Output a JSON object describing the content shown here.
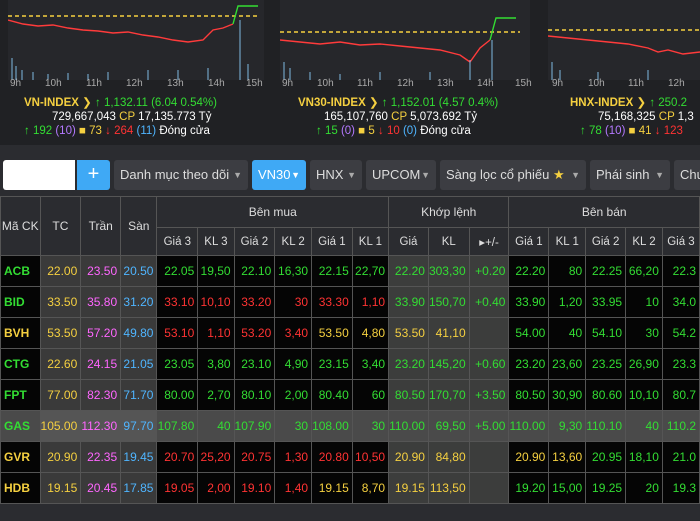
{
  "time_labels": [
    "9h",
    "10h",
    "11h",
    "12h",
    "13h",
    "14h",
    "15h"
  ],
  "indices": [
    {
      "name": "VN-INDEX",
      "arrow": "↑",
      "value": "1,132.11",
      "change": "(6.04 0.54%)",
      "volume": "729,667,043",
      "cp_label": "CP",
      "cp_value": "17,135.773 Tỷ",
      "adv": "192",
      "adv_ceil": "(10)",
      "unch": "73",
      "dec": "264",
      "dec_floor": "(11)",
      "status": "Đóng cửa"
    },
    {
      "name": "VN30-INDEX",
      "arrow": "↑",
      "value": "1,152.01",
      "change": "(4.57 0.4%)",
      "volume": "165,107,760",
      "cp_label": "CP",
      "cp_value": "5,073.692 Tỷ",
      "adv": "15",
      "adv_ceil": "(0)",
      "unch": "5",
      "dec": "10",
      "dec_floor": "(0)",
      "status": "Đóng cửa"
    },
    {
      "name": "HNX-INDEX",
      "arrow": "↑",
      "value": "250.2",
      "change": "",
      "volume": "75,168,325",
      "cp_label": "CP",
      "cp_value": "1,3",
      "adv": "78",
      "adv_ceil": "(10)",
      "unch": "41",
      "dec": "123",
      "dec_floor": "",
      "status": ""
    }
  ],
  "toolbar": {
    "search_placeholder": "",
    "add_label": "+",
    "watchlist_label": "Danh mục theo dõi",
    "vn30_label": "VN30",
    "hnx_label": "HNX",
    "upcom_label": "UPCOM",
    "filter_label": "Sàng lọc cổ phiếu",
    "star": "★",
    "derivatives_label": "Phái sinh",
    "last_label": "Chứ"
  },
  "table": {
    "head": {
      "symbol": "Mã CK",
      "tc": "TC",
      "ceil": "Trần",
      "floor": "Sàn",
      "buy": "Bên mua",
      "match": "Khớp lệnh",
      "sell": "Bên bán",
      "g3": "Giá 3",
      "kl3": "KL 3",
      "g2": "Giá 2",
      "kl2": "KL 2",
      "g1": "Giá 1",
      "kl1": "KL 1",
      "mg": "Giá",
      "mkl": "KL",
      "mchg": "+/-",
      "s_g1": "Giá 1",
      "s_kl1": "KL 1",
      "s_g2": "Giá 2",
      "s_kl2": "KL 2",
      "s_g3": "Giá 3"
    },
    "rows": [
      {
        "sym": "ACB",
        "c": "up",
        "tc": "22.00",
        "ceil": "23.50",
        "floor": "20.50",
        "b": [
          [
            "22.05",
            "up"
          ],
          [
            "19,50",
            "up"
          ],
          [
            "22.10",
            "up"
          ],
          [
            "16,30",
            "up"
          ],
          [
            "22.15",
            "up"
          ],
          [
            "22,70",
            "up"
          ]
        ],
        "m": [
          [
            "22.20",
            "up"
          ],
          [
            "303,30",
            "up"
          ],
          [
            "+0.20",
            "up"
          ]
        ],
        "s": [
          [
            "22.20",
            "up"
          ],
          [
            "80",
            "up"
          ],
          [
            "22.25",
            "up"
          ],
          [
            "66,20",
            "up"
          ],
          [
            "22.3",
            "up"
          ]
        ]
      },
      {
        "sym": "BID",
        "c": "up",
        "tc": "33.50",
        "ceil": "35.80",
        "floor": "31.20",
        "b": [
          [
            "33.10",
            "down"
          ],
          [
            "10,10",
            "down"
          ],
          [
            "33.20",
            "down"
          ],
          [
            "30",
            "down"
          ],
          [
            "33.30",
            "down"
          ],
          [
            "1,10",
            "down"
          ]
        ],
        "m": [
          [
            "33.90",
            "up"
          ],
          [
            "150,70",
            "up"
          ],
          [
            "+0.40",
            "up"
          ]
        ],
        "s": [
          [
            "33.90",
            "up"
          ],
          [
            "1,20",
            "up"
          ],
          [
            "33.95",
            "up"
          ],
          [
            "10",
            "up"
          ],
          [
            "34.0",
            "up"
          ]
        ]
      },
      {
        "sym": "BVH",
        "c": "ref",
        "tc": "53.50",
        "ceil": "57.20",
        "floor": "49.80",
        "b": [
          [
            "53.10",
            "down"
          ],
          [
            "1,10",
            "down"
          ],
          [
            "53.20",
            "down"
          ],
          [
            "3,40",
            "down"
          ],
          [
            "53.50",
            "ref"
          ],
          [
            "4,80",
            "ref"
          ]
        ],
        "m": [
          [
            "53.50",
            "ref"
          ],
          [
            "41,10",
            "ref"
          ],
          [
            "",
            ""
          ]
        ],
        "s": [
          [
            "54.00",
            "up"
          ],
          [
            "40",
            "up"
          ],
          [
            "54.10",
            "up"
          ],
          [
            "30",
            "up"
          ],
          [
            "54.2",
            "up"
          ]
        ]
      },
      {
        "sym": "CTG",
        "c": "up",
        "tc": "22.60",
        "ceil": "24.15",
        "floor": "21.05",
        "b": [
          [
            "23.05",
            "up"
          ],
          [
            "3,80",
            "up"
          ],
          [
            "23.10",
            "up"
          ],
          [
            "4,90",
            "up"
          ],
          [
            "23.15",
            "up"
          ],
          [
            "3,40",
            "up"
          ]
        ],
        "m": [
          [
            "23.20",
            "up"
          ],
          [
            "145,20",
            "up"
          ],
          [
            "+0.60",
            "up"
          ]
        ],
        "s": [
          [
            "23.20",
            "up"
          ],
          [
            "23,60",
            "up"
          ],
          [
            "23.25",
            "up"
          ],
          [
            "26,90",
            "up"
          ],
          [
            "23.3",
            "up"
          ]
        ]
      },
      {
        "sym": "FPT",
        "c": "up",
        "tc": "77.00",
        "ceil": "82.30",
        "floor": "71.70",
        "b": [
          [
            "80.00",
            "up"
          ],
          [
            "2,70",
            "up"
          ],
          [
            "80.10",
            "up"
          ],
          [
            "2,00",
            "up"
          ],
          [
            "80.40",
            "up"
          ],
          [
            "60",
            "up"
          ]
        ],
        "m": [
          [
            "80.50",
            "up"
          ],
          [
            "170,70",
            "up"
          ],
          [
            "+3.50",
            "up"
          ]
        ],
        "s": [
          [
            "80.50",
            "up"
          ],
          [
            "30,90",
            "up"
          ],
          [
            "80.60",
            "up"
          ],
          [
            "10,10",
            "up"
          ],
          [
            "80.7",
            "up"
          ]
        ]
      },
      {
        "sym": "GAS",
        "c": "up",
        "tc": "105.00",
        "ceil": "112.30",
        "floor": "97.70",
        "b": [
          [
            "107.80",
            "up"
          ],
          [
            "40",
            "up"
          ],
          [
            "107.90",
            "up"
          ],
          [
            "30",
            "up"
          ],
          [
            "108.00",
            "up"
          ],
          [
            "30",
            "up"
          ]
        ],
        "m": [
          [
            "110.00",
            "up"
          ],
          [
            "69,50",
            "up"
          ],
          [
            "+5.00",
            "up"
          ]
        ],
        "s": [
          [
            "110.00",
            "up"
          ],
          [
            "9,30",
            "up"
          ],
          [
            "110.10",
            "up"
          ],
          [
            "40",
            "up"
          ],
          [
            "110.2",
            "up"
          ]
        ]
      },
      {
        "sym": "GVR",
        "c": "ref",
        "tc": "20.90",
        "ceil": "22.35",
        "floor": "19.45",
        "b": [
          [
            "20.70",
            "down"
          ],
          [
            "25,20",
            "down"
          ],
          [
            "20.75",
            "down"
          ],
          [
            "1,30",
            "down"
          ],
          [
            "20.80",
            "down"
          ],
          [
            "10,50",
            "down"
          ]
        ],
        "m": [
          [
            "20.90",
            "ref"
          ],
          [
            "84,80",
            "ref"
          ],
          [
            "",
            ""
          ]
        ],
        "s": [
          [
            "20.90",
            "ref"
          ],
          [
            "13,60",
            "ref"
          ],
          [
            "20.95",
            "up"
          ],
          [
            "18,10",
            "up"
          ],
          [
            "21.0",
            "up"
          ]
        ]
      },
      {
        "sym": "HDB",
        "c": "ref",
        "tc": "19.15",
        "ceil": "20.45",
        "floor": "17.85",
        "b": [
          [
            "19.05",
            "down"
          ],
          [
            "2,00",
            "down"
          ],
          [
            "19.10",
            "down"
          ],
          [
            "1,40",
            "down"
          ],
          [
            "19.15",
            "ref"
          ],
          [
            "8,70",
            "ref"
          ]
        ],
        "m": [
          [
            "19.15",
            "ref"
          ],
          [
            "113,50",
            "ref"
          ],
          [
            "",
            ""
          ]
        ],
        "s": [
          [
            "19.20",
            "up"
          ],
          [
            "15,00",
            "up"
          ],
          [
            "19.25",
            "up"
          ],
          [
            "20",
            "up"
          ],
          [
            "19.3",
            "up"
          ]
        ]
      }
    ]
  }
}
